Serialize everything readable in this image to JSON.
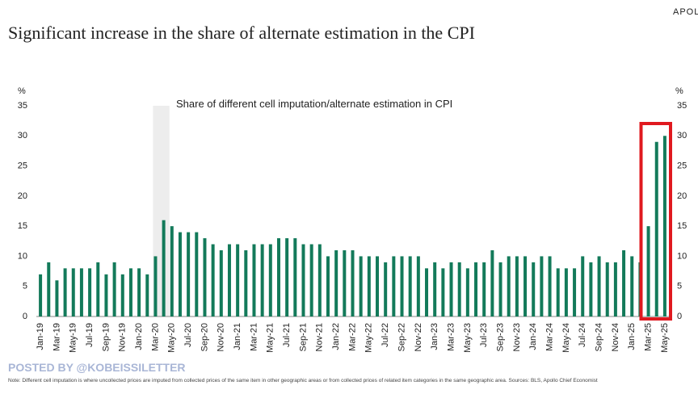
{
  "brand": "APOLLO",
  "watermark": "POSTED BY @KOBEISSILETTER",
  "note": "Note: Different cell imputation is where uncollected prices are imputed from collected prices of the same item in other geographic areas or from collected prices of related item categories in the same geographic area. Sources: BLS, Apollo Chief Economist",
  "chart_data": {
    "type": "bar",
    "title": "Significant increase in the share of alternate estimation in the CPI",
    "subtitle": "Share of different cell imputation/alternate estimation in CPI",
    "y_label": "%",
    "y2_label": "%",
    "color": "#137a5a",
    "categories": [
      "Jan-19",
      null,
      "Mar-19",
      null,
      "May-19",
      null,
      "Jul-19",
      null,
      "Sep-19",
      null,
      "Nov-19",
      null,
      "Jan-20",
      null,
      "Mar-20",
      null,
      "May-20",
      null,
      "Jul-20",
      null,
      "Sep-20",
      null,
      "Nov-20",
      null,
      "Jan-21",
      null,
      "Mar-21",
      null,
      "May-21",
      null,
      "Jul-21",
      null,
      "Sep-21",
      null,
      "Nov-21",
      null,
      "Jan-22",
      null,
      "Mar-22",
      null,
      "May-22",
      null,
      "Jul-22",
      null,
      "Sep-22",
      null,
      "Nov-22",
      null,
      "Jan-23",
      null,
      "Mar-23",
      null,
      "May-23",
      null,
      "Jul-23",
      null,
      "Sep-23",
      null,
      "Nov-23",
      null,
      "Jan-24",
      null,
      "Mar-24",
      null,
      "May-24",
      null,
      "Jul-24",
      null,
      "Sep-24",
      null,
      "Nov-24",
      null,
      "Jan-25",
      null,
      "Mar-25",
      null,
      "May-25"
    ],
    "values": [
      7,
      9,
      6,
      8,
      8,
      8,
      8,
      9,
      7,
      9,
      7,
      8,
      8,
      7,
      10,
      16,
      15,
      14,
      14,
      14,
      13,
      12,
      11,
      12,
      12,
      11,
      12,
      12,
      12,
      13,
      13,
      13,
      12,
      12,
      12,
      10,
      11,
      11,
      11,
      10,
      10,
      10,
      9,
      10,
      10,
      10,
      10,
      8,
      9,
      8,
      9,
      9,
      8,
      9,
      9,
      11,
      9,
      10,
      10,
      10,
      9,
      10,
      10,
      8,
      8,
      8,
      10,
      9,
      10,
      9,
      9,
      11,
      10,
      9,
      15,
      29,
      30
    ],
    "ylim": [
      0,
      35
    ],
    "yticks": [
      0,
      5,
      10,
      15,
      20,
      25,
      30,
      35
    ],
    "y2lim": [
      0,
      35
    ],
    "y2ticks": [
      0,
      5,
      10,
      15,
      20,
      25,
      30,
      35
    ]
  }
}
